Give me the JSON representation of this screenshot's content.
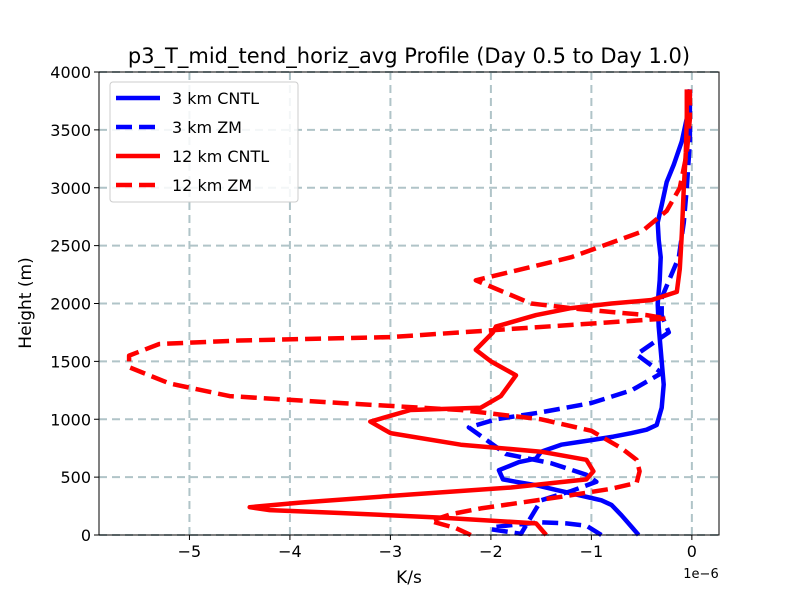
{
  "chart_data": {
    "type": "line",
    "title": "p3_T_mid_tend_horiz_avg Profile (Day 0.5 to Day 1.0)",
    "xlabel": "K/s",
    "ylabel": "Height (m)",
    "x_multiplier_label": "1e−6",
    "xlim": [
      -5.9,
      0.27
    ],
    "ylim": [
      0,
      4000
    ],
    "xticks": [
      -5,
      -4,
      -3,
      -2,
      -1,
      0
    ],
    "xtick_labels": [
      "−5",
      "−4",
      "−3",
      "−2",
      "−1",
      "0"
    ],
    "yticks": [
      0,
      500,
      1000,
      1500,
      2000,
      2500,
      3000,
      3500,
      4000
    ],
    "ytick_labels": [
      "0",
      "500",
      "1000",
      "1500",
      "2000",
      "2500",
      "3000",
      "3500",
      "4000"
    ],
    "grid": true,
    "legend_position": "upper-left",
    "series": [
      {
        "name": "3 km CNTL",
        "color": "#0000ff",
        "dash": "solid",
        "x": [
          -0.53,
          -0.6,
          -0.7,
          -0.8,
          -0.9,
          -1.0,
          -1.15,
          -1.35,
          -1.55,
          -1.75,
          -1.88,
          -1.92,
          -1.72,
          -1.55,
          -1.5,
          -1.3,
          -1.0,
          -0.78,
          -0.6,
          -0.45,
          -0.35,
          -0.3,
          -0.28,
          -0.3,
          -0.33,
          -0.34,
          -0.32,
          -0.31,
          -0.33,
          -0.34,
          -0.3,
          -0.25,
          -0.18,
          -0.1,
          -0.05,
          -0.02
        ],
        "y": [
          0,
          70,
          170,
          260,
          300,
          320,
          350,
          390,
          430,
          460,
          480,
          560,
          630,
          660,
          720,
          780,
          820,
          850,
          880,
          910,
          950,
          1100,
          1300,
          1500,
          1800,
          2000,
          2200,
          2400,
          2550,
          2700,
          2850,
          3050,
          3200,
          3400,
          3600,
          3850
        ]
      },
      {
        "name": "3 km ZM",
        "color": "#0000ff",
        "dash": "dashed",
        "x": [
          -0.9,
          -1.05,
          -1.25,
          -1.5,
          -1.75,
          -1.95,
          -2.0,
          -1.7,
          -1.5,
          -1.2,
          -0.95,
          -1.05,
          -1.4,
          -1.85,
          -2.22,
          -1.95,
          -1.5,
          -1.0,
          -0.6,
          -0.3,
          -0.55,
          -0.35,
          -0.23,
          -0.3,
          -0.3,
          -0.13,
          -0.08,
          -0.05,
          -0.02,
          -0.02
        ],
        "y": [
          0,
          80,
          100,
          110,
          90,
          70,
          50,
          10,
          300,
          380,
          460,
          520,
          620,
          700,
          930,
          1000,
          1060,
          1140,
          1250,
          1400,
          1560,
          1680,
          1750,
          1900,
          2050,
          2400,
          2700,
          3000,
          3400,
          3850
        ]
      },
      {
        "name": "12 km CNTL",
        "color": "#ff0000",
        "dash": "solid",
        "x": [
          -1.45,
          -1.55,
          -2.5,
          -3.5,
          -4.2,
          -4.4,
          -3.9,
          -2.8,
          -1.8,
          -1.05,
          -0.98,
          -1.05,
          -1.5,
          -2.3,
          -3.0,
          -3.2,
          -2.8,
          -2.1,
          -1.9,
          -1.75,
          -2.0,
          -2.15,
          -1.98,
          -1.95,
          -1.55,
          -1.2,
          -0.8,
          -0.4,
          -0.15,
          -0.12,
          -0.1,
          -0.08,
          -0.06,
          -0.05,
          -0.05
        ],
        "y": [
          0,
          100,
          150,
          190,
          215,
          240,
          280,
          350,
          410,
          480,
          550,
          650,
          720,
          780,
          880,
          980,
          1080,
          1100,
          1200,
          1380,
          1500,
          1600,
          1750,
          1800,
          1900,
          1960,
          2000,
          2030,
          2100,
          2300,
          2600,
          3000,
          3300,
          3600,
          3850
        ]
      },
      {
        "name": "12 km ZM",
        "color": "#ff0000",
        "dash": "dashed",
        "x": [
          -2.2,
          -2.35,
          -2.6,
          -2.4,
          -2.1,
          -1.7,
          -1.3,
          -0.8,
          -0.55,
          -0.52,
          -0.55,
          -0.7,
          -1.0,
          -1.5,
          -2.3,
          -3.5,
          -4.6,
          -5.2,
          -5.6,
          -5.6,
          -5.3,
          -4.5,
          -3.0,
          -0.25,
          -0.45,
          -1.1,
          -1.6,
          -2.15,
          -1.2,
          -0.5,
          -0.25,
          -0.12,
          -0.05,
          -0.02,
          -0.02
        ],
        "y": [
          0,
          60,
          120,
          180,
          230,
          280,
          330,
          400,
          450,
          550,
          650,
          750,
          900,
          1000,
          1080,
          1140,
          1200,
          1310,
          1450,
          1550,
          1650,
          1680,
          1710,
          1870,
          1900,
          1950,
          2000,
          2200,
          2400,
          2620,
          2800,
          3000,
          3300,
          3600,
          3850
        ]
      }
    ]
  }
}
